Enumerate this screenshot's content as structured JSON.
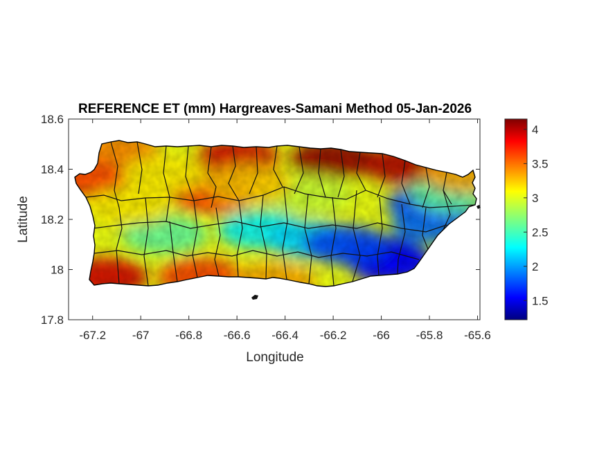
{
  "chart_data": {
    "type": "heatmap",
    "title": "REFERENCE ET (mm) Hargreaves-Samani Method  05-Jan-2026",
    "xlabel": "Longitude",
    "ylabel": "Latitude",
    "xlim": [
      -67.3,
      -65.59
    ],
    "ylim": [
      17.8,
      18.6
    ],
    "x_ticks": [
      -67.2,
      -67,
      -66.8,
      -66.6,
      -66.4,
      -66.2,
      -66,
      -65.8,
      -65.6
    ],
    "x_tick_labels": [
      "-67.2",
      "-67",
      "-66.8",
      "-66.6",
      "-66.4",
      "-66.2",
      "-66",
      "-65.8",
      "-65.6"
    ],
    "y_ticks": [
      17.8,
      18,
      18.2,
      18.4,
      18.6
    ],
    "y_tick_labels": [
      "17.8",
      "18",
      "18.2",
      "18.4",
      "18.6"
    ],
    "colorbar": {
      "colormap": "jet",
      "min": 1.22,
      "max": 4.15,
      "ticks": [
        1.5,
        2,
        2.5,
        3,
        3.5,
        4
      ],
      "tick_labels": [
        "1.5",
        "2",
        "2.5",
        "3",
        "3.5",
        "4"
      ]
    },
    "grid": false,
    "field": {
      "description_of_pattern": "High ET along north coast, low ET in central-eastern interior and southeast",
      "zones": [
        {
          "lon": -66.2,
          "lat": 18.44,
          "value": 4.1
        },
        {
          "lon": -65.9,
          "lat": 18.42,
          "value": 4.0
        },
        {
          "lon": -66.6,
          "lat": 18.44,
          "value": 3.9
        },
        {
          "lon": -67.1,
          "lat": 18.47,
          "value": 3.4
        },
        {
          "lon": -67.23,
          "lat": 18.36,
          "value": 3.6
        },
        {
          "lon": -67.15,
          "lat": 17.97,
          "value": 3.9
        },
        {
          "lon": -66.75,
          "lat": 17.97,
          "value": 3.6
        },
        {
          "lon": -66.45,
          "lat": 17.95,
          "value": 3.3
        },
        {
          "lon": -66.7,
          "lat": 18.3,
          "value": 3.6
        },
        {
          "lon": -66.9,
          "lat": 18.38,
          "value": 3.1
        },
        {
          "lon": -66.5,
          "lat": 18.16,
          "value": 2.3
        },
        {
          "lon": -66.3,
          "lat": 18.12,
          "value": 2.2
        },
        {
          "lon": -66.0,
          "lat": 18.06,
          "value": 1.5
        },
        {
          "lon": -65.95,
          "lat": 18.02,
          "value": 1.6
        },
        {
          "lon": -65.8,
          "lat": 18.26,
          "value": 1.8
        },
        {
          "lon": -65.78,
          "lat": 18.18,
          "value": 1.9
        },
        {
          "lon": -66.15,
          "lat": 18.1,
          "value": 1.8
        },
        {
          "lon": -66.9,
          "lat": 18.14,
          "value": 2.6
        },
        {
          "lon": -67.05,
          "lat": 18.25,
          "value": 3.1
        },
        {
          "lon": -65.7,
          "lat": 18.3,
          "value": 2.6
        },
        {
          "lon": -65.65,
          "lat": 18.38,
          "value": 3.3
        },
        {
          "lon": -66.3,
          "lat": 18.3,
          "value": 2.9
        },
        {
          "lon": -66.55,
          "lat": 18.34,
          "value": 3.2
        }
      ]
    }
  }
}
